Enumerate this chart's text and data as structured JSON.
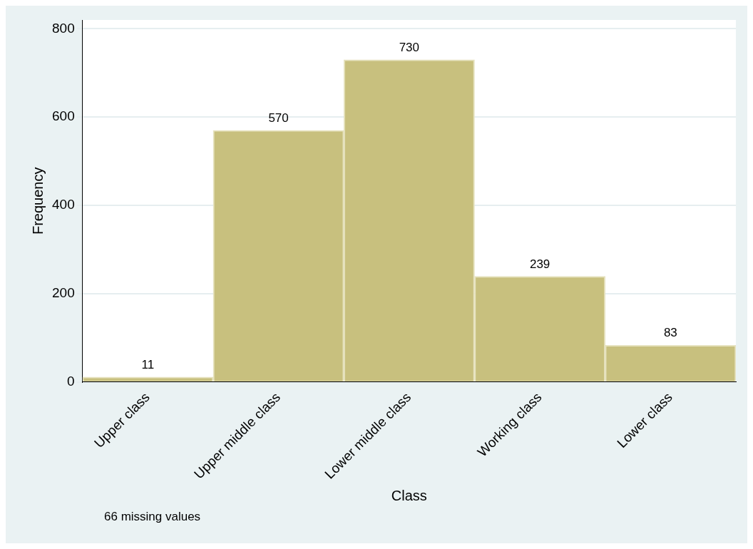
{
  "chart_data": {
    "type": "bar",
    "xlabel": "Class",
    "ylabel": "Frequency",
    "categories": [
      "Upper class",
      "Upper middle class",
      "Lower middle class",
      "Working class",
      "Lower class"
    ],
    "values": [
      11,
      570,
      730,
      239,
      83
    ],
    "color": "#c8c07e",
    "ylim": [
      0,
      820
    ],
    "yticks": [
      0,
      200,
      400,
      600,
      800
    ],
    "grid": "y",
    "data_labels": true,
    "annotations": [
      "66 missing values"
    ]
  }
}
